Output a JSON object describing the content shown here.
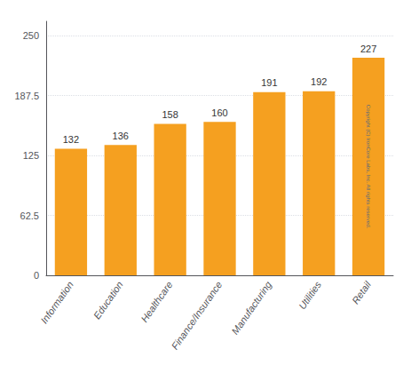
{
  "chart_data": {
    "type": "bar",
    "categories": [
      "Information",
      "Education",
      "Healthcare",
      "Finance/Insurance",
      "Manufacturing",
      "Utilities",
      "Retail"
    ],
    "values": [
      132,
      136,
      158,
      160,
      191,
      192,
      227
    ],
    "color": "#F5A020",
    "ylim": [
      0,
      265
    ],
    "yticks": [
      0,
      62.5,
      125,
      187.5,
      250
    ],
    "grid": true,
    "data_labels": true,
    "annotation": "Copyright (C) IronCore Labs, Inc. All rights reserved."
  }
}
